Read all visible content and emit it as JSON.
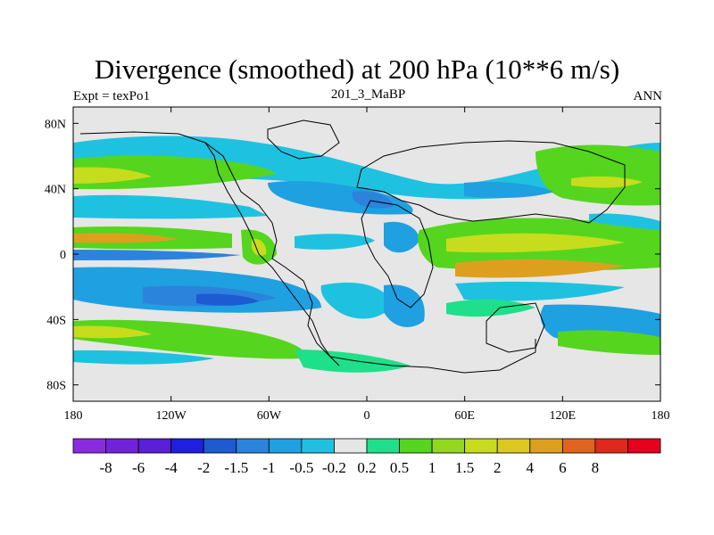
{
  "header": {
    "title": "Divergence (smoothed) at 200 hPa (10**6 m/s)",
    "left": "Expt = texPo1",
    "center": "201_3_MaBP",
    "right": "ANN"
  },
  "axes": {
    "xticks": [
      "180",
      "120W",
      "60W",
      "0",
      "60E",
      "120E",
      "180"
    ],
    "yticks": [
      "80N",
      "40N",
      "0",
      "40S",
      "80S"
    ]
  },
  "colorbar": {
    "colors": [
      "#8a2be2",
      "#7322dc",
      "#5a1fd8",
      "#1f1fe0",
      "#1e5ad2",
      "#2b83dc",
      "#1fa0e0",
      "#1ec2e0",
      "#e6e6e6",
      "#1ee08a",
      "#55d51e",
      "#94d81e",
      "#c8dc1e",
      "#dcc81e",
      "#dca01e",
      "#e0641e",
      "#e0281e",
      "#e6001e"
    ],
    "labels": [
      "-8",
      "-6",
      "-4",
      "-2",
      "-1.5",
      "-1",
      "-0.5",
      "-0.2",
      "0.2",
      "0.5",
      "1",
      "1.5",
      "2",
      "4",
      "6",
      "8"
    ]
  },
  "map_colors": {
    "neutral": "#e6e6e6",
    "pos_light": "#1ee08a",
    "pos_mid": "#55d51e",
    "pos_yellow": "#c8dc1e",
    "pos_orange": "#dca01e",
    "neg_light": "#1ec2e0",
    "neg_mid": "#1fa0e0",
    "neg_dark": "#2b83dc",
    "neg_deep": "#1e5ad2"
  }
}
